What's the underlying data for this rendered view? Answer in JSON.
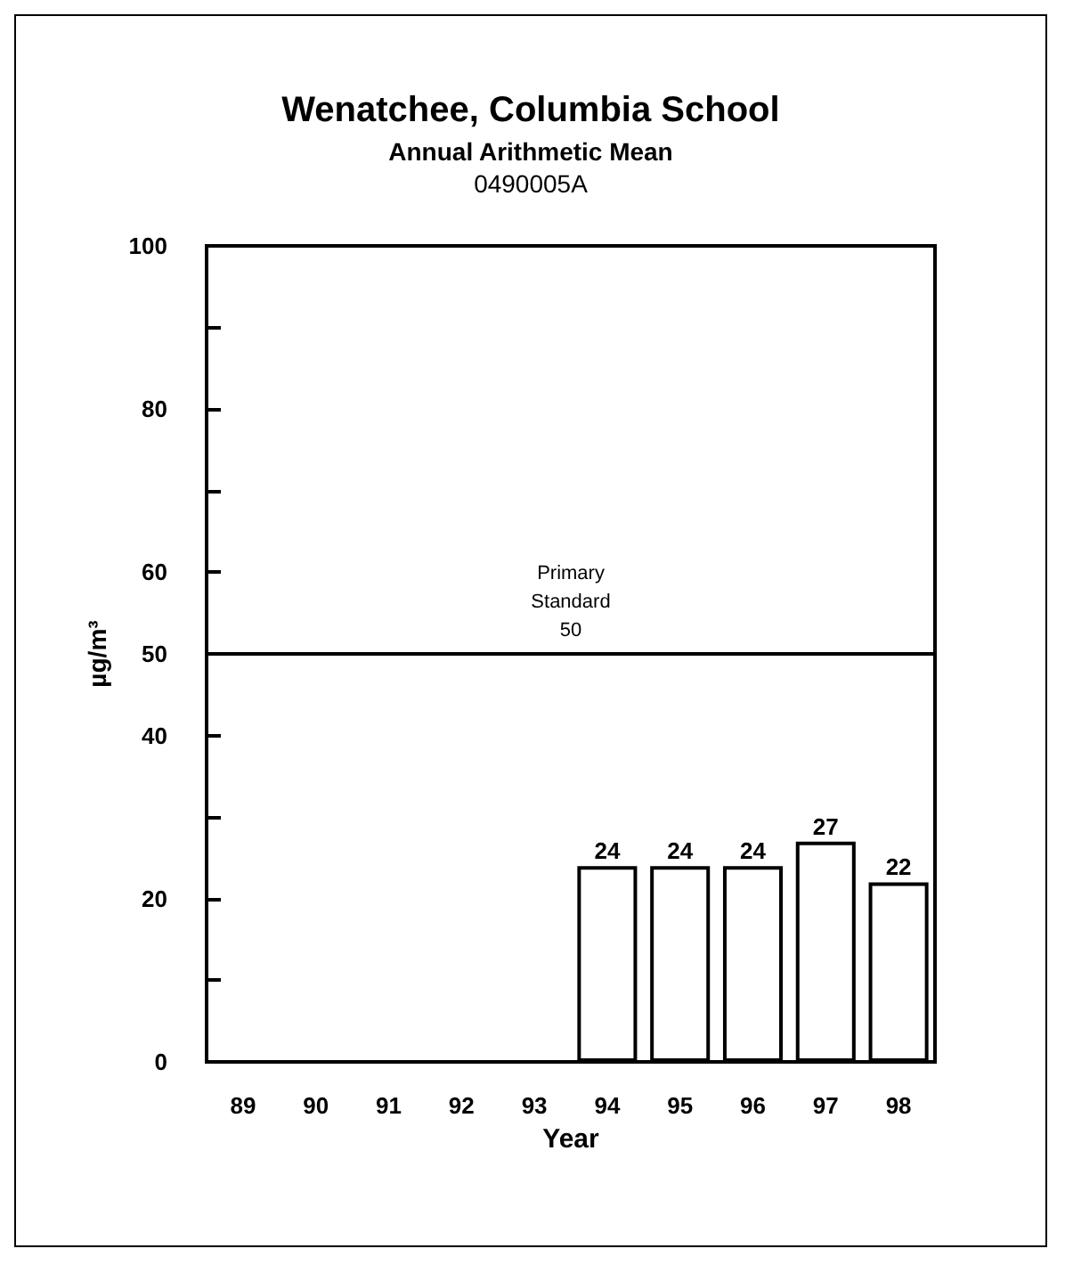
{
  "chart_data": {
    "type": "bar",
    "title": "Wenatchee, Columbia School",
    "subtitle": "Annual Arithmetic Mean\n0490005A",
    "xlabel": "Year",
    "ylabel": "µg/m³",
    "categories": [
      "89",
      "90",
      "91",
      "92",
      "93",
      "94",
      "95",
      "96",
      "97",
      "98"
    ],
    "values": [
      null,
      null,
      null,
      null,
      null,
      24,
      24,
      24,
      27,
      22
    ],
    "value_labels": [
      null,
      null,
      null,
      null,
      null,
      "24",
      "24",
      "24",
      "27",
      "22"
    ],
    "color": "#ffffff",
    "ylim": [
      0,
      100
    ],
    "yticks": [
      0,
      {
        "value": 10,
        "label": null
      },
      20,
      {
        "value": 30,
        "label": null
      },
      40,
      50,
      60,
      {
        "value": 70,
        "label": null
      },
      80,
      {
        "value": 90,
        "label": null
      },
      100
    ],
    "ref_lines": [
      {
        "axis": "y",
        "value": 50,
        "label": "Primary\nStandard\n50",
        "color": "#000000"
      }
    ],
    "grid": false
  }
}
